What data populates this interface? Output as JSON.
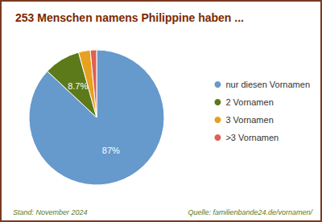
{
  "chart_data": {
    "type": "pie",
    "title": "253 Menschen namens Philippine haben ...",
    "categories": [
      "nur diesen Vornamen",
      "2 Vornamen",
      "3 Vornamen",
      ">3 Vornamen"
    ],
    "values": [
      87.0,
      8.7,
      2.8,
      1.5
    ],
    "value_labels": [
      "87%",
      "8.7%",
      null,
      null
    ],
    "colors": [
      "#6699CC",
      "#5C7A1A",
      "#E8A020",
      "#E06050"
    ],
    "legend": "right",
    "annotations": [
      "Stand: November 2024",
      "Quelle: familienbande24.de/vornamen/"
    ]
  }
}
